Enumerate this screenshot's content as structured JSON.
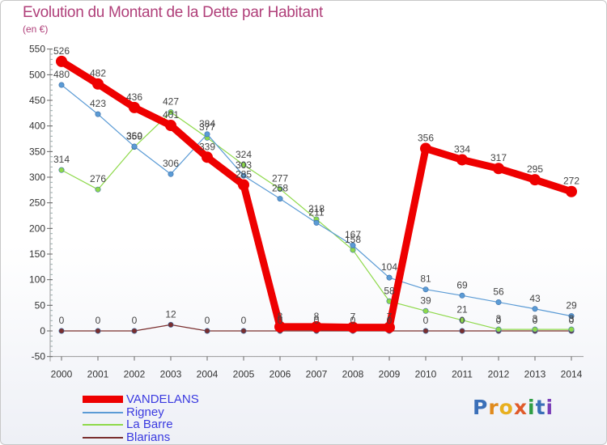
{
  "title": "Evolution du Montant de la Dette par Habitant",
  "subtitle": "(en €)",
  "logo": {
    "text": "Proxiti",
    "colors": [
      "#3a6fb8",
      "#e08a1c",
      "#e8b020",
      "#e05a2a",
      "#2f9e44",
      "#3a6fb8",
      "#7a3fb8"
    ]
  },
  "chart_data": {
    "type": "line",
    "x": [
      "2000",
      "2001",
      "2002",
      "2003",
      "2004",
      "2005",
      "2006",
      "2007",
      "2008",
      "2009",
      "2010",
      "2011",
      "2012",
      "2013",
      "2014"
    ],
    "ylim": [
      -50,
      550
    ],
    "yticks": [
      -50,
      0,
      50,
      100,
      150,
      200,
      250,
      300,
      350,
      400,
      450,
      500,
      550
    ],
    "grid": false,
    "legend_position": "bottom-left",
    "series": [
      {
        "name": "VANDELANS",
        "color": "#ee0000",
        "values": [
          526,
          482,
          436,
          401,
          339,
          285,
          8,
          8,
          7,
          7,
          356,
          334,
          317,
          295,
          272
        ],
        "labels": [
          "526",
          "482",
          "436",
          "401",
          "339",
          "285",
          "8",
          "8",
          "7",
          "7",
          "356",
          "334",
          "317",
          "295",
          "272"
        ]
      },
      {
        "name": "Rigney",
        "color": "#5b9bd5",
        "values": [
          480,
          423,
          360,
          306,
          384,
          303,
          258,
          211,
          167,
          104,
          81,
          69,
          56,
          43,
          29
        ],
        "labels": [
          "480",
          "423",
          "360",
          "306",
          "384",
          "303",
          "258",
          "211",
          "167",
          "104",
          "81",
          "69",
          "56",
          "43",
          "29"
        ]
      },
      {
        "name": "La Barre",
        "color": "#8ed94a",
        "values": [
          314,
          276,
          359,
          427,
          377,
          324,
          277,
          218,
          158,
          58,
          39,
          21,
          3,
          3,
          3
        ],
        "labels": [
          "314",
          "276",
          "359",
          "427",
          "377",
          "324",
          "277",
          "218",
          "158",
          "58",
          "39",
          "21",
          "3",
          "3",
          "3"
        ]
      },
      {
        "name": "Blarians",
        "color": "#7a2e2e",
        "values": [
          0,
          0,
          0,
          12,
          0,
          0,
          0,
          0,
          0,
          0,
          0,
          0,
          0,
          0,
          0
        ],
        "labels": [
          "0",
          "0",
          "0",
          "12",
          "0",
          "0",
          "0",
          "0",
          "0",
          "0",
          "0",
          "0",
          "0",
          "0",
          "0"
        ]
      }
    ]
  }
}
